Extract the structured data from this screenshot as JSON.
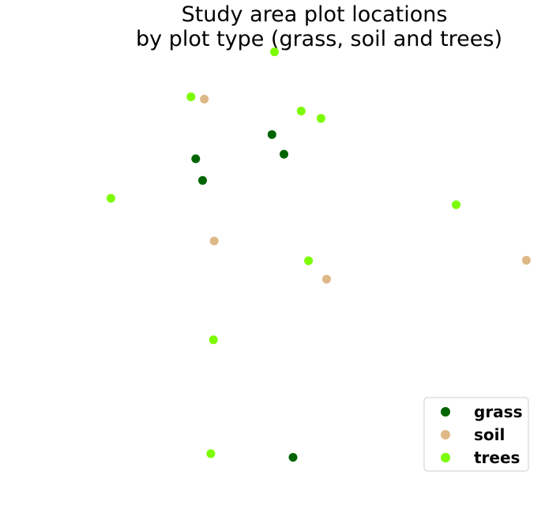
{
  "chart_data": {
    "type": "scatter",
    "title_lines": [
      "Study area plot locations",
      "by plot type (grass, soil and trees)"
    ],
    "axes_visible": false,
    "grid": false,
    "legend_position": "bottom-right",
    "xlim": [
      0,
      1
    ],
    "ylim": [
      0,
      1
    ],
    "series": [
      {
        "name": "grass",
        "color": "#006400",
        "points": [
          {
            "x": 0.395,
            "y": 0.745
          },
          {
            "x": 0.423,
            "y": 0.702
          },
          {
            "x": 0.218,
            "y": 0.692
          },
          {
            "x": 0.234,
            "y": 0.645
          },
          {
            "x": 0.444,
            "y": 0.042
          }
        ]
      },
      {
        "name": "soil",
        "color": "#DEB887",
        "points": [
          {
            "x": 0.238,
            "y": 0.822
          },
          {
            "x": 0.261,
            "y": 0.513
          },
          {
            "x": 0.986,
            "y": 0.471
          },
          {
            "x": 0.522,
            "y": 0.43
          }
        ]
      },
      {
        "name": "trees",
        "color": "#7CFC00",
        "points": [
          {
            "x": 0.401,
            "y": 0.925
          },
          {
            "x": 0.207,
            "y": 0.827
          },
          {
            "x": 0.463,
            "y": 0.796
          },
          {
            "x": 0.509,
            "y": 0.78
          },
          {
            "x": 0.021,
            "y": 0.606
          },
          {
            "x": 0.823,
            "y": 0.592
          },
          {
            "x": 0.48,
            "y": 0.47
          },
          {
            "x": 0.259,
            "y": 0.298
          },
          {
            "x": 0.253,
            "y": 0.05
          }
        ]
      }
    ]
  }
}
